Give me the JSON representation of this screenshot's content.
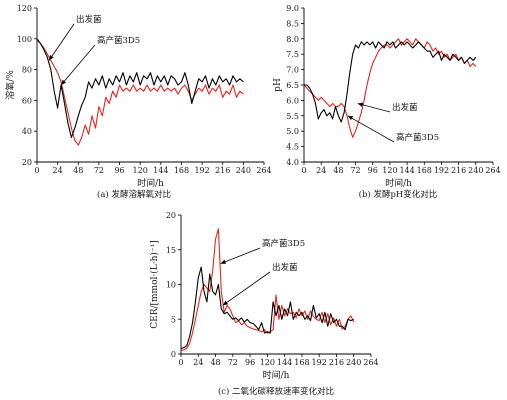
{
  "chart_data": [
    {
      "type": "line",
      "caption": "(a) 发酵溶解氧对比",
      "xlabel": "时间/h",
      "ylabel": "溶氧/%",
      "xlim": [
        0,
        264
      ],
      "ylim": [
        20,
        120
      ],
      "xticks": [
        "0",
        "24",
        "48",
        "72",
        "96",
        "120",
        "144",
        "168",
        "192",
        "216",
        "240",
        "264"
      ],
      "yticks": [
        "20",
        "40",
        "60",
        "80",
        "100",
        "120"
      ],
      "annotations": [
        {
          "text": "出发菌",
          "target": "starting"
        },
        {
          "text": "高产菌3D5",
          "target": "high"
        }
      ],
      "series": [
        {
          "name": "出发菌",
          "color": "#000000",
          "x": [
            0,
            4,
            8,
            12,
            16,
            20,
            24,
            28,
            32,
            36,
            40,
            44,
            48,
            52,
            56,
            60,
            64,
            68,
            72,
            76,
            80,
            84,
            88,
            92,
            96,
            100,
            104,
            108,
            112,
            116,
            120,
            124,
            128,
            132,
            136,
            140,
            144,
            148,
            152,
            156,
            160,
            164,
            168,
            172,
            176,
            180,
            184,
            188,
            192,
            196,
            200,
            204,
            208,
            212,
            216,
            220,
            224,
            228,
            232,
            236,
            240
          ],
          "y": [
            100,
            97,
            93,
            88,
            80,
            66,
            55,
            70,
            58,
            45,
            36,
            42,
            50,
            57,
            62,
            72,
            68,
            74,
            70,
            76,
            68,
            74,
            70,
            76,
            72,
            78,
            70,
            76,
            72,
            78,
            70,
            76,
            74,
            78,
            70,
            76,
            72,
            76,
            70,
            76,
            74,
            70,
            72,
            78,
            70,
            58,
            66,
            74,
            72,
            76,
            68,
            74,
            70,
            76,
            72,
            74,
            70,
            76,
            72,
            74,
            72
          ]
        },
        {
          "name": "高产菌3D5",
          "color": "#e8261f",
          "x": [
            0,
            4,
            8,
            12,
            16,
            20,
            24,
            28,
            32,
            36,
            40,
            44,
            48,
            52,
            56,
            60,
            64,
            68,
            72,
            76,
            80,
            84,
            88,
            92,
            96,
            100,
            104,
            108,
            112,
            116,
            120,
            124,
            128,
            132,
            136,
            140,
            144,
            148,
            152,
            156,
            160,
            164,
            168,
            172,
            176,
            180,
            184,
            188,
            192,
            196,
            200,
            204,
            208,
            212,
            216,
            220,
            224,
            228,
            232,
            236,
            240
          ],
          "y": [
            99,
            97,
            94,
            90,
            86,
            82,
            78,
            72,
            62,
            52,
            42,
            34,
            31,
            36,
            44,
            38,
            50,
            42,
            56,
            50,
            62,
            58,
            66,
            62,
            70,
            66,
            68,
            66,
            70,
            66,
            68,
            66,
            70,
            66,
            68,
            66,
            70,
            66,
            68,
            66,
            68,
            64,
            68,
            70,
            66,
            60,
            64,
            68,
            66,
            70,
            64,
            68,
            66,
            70,
            62,
            66,
            64,
            70,
            62,
            66,
            64
          ]
        }
      ]
    },
    {
      "type": "line",
      "caption": "(b) 发酵pH变化对比",
      "xlabel": "时间/h",
      "ylabel": "pH",
      "xlim": [
        0,
        264
      ],
      "ylim": [
        4.0,
        9.0
      ],
      "xticks": [
        "0",
        "24",
        "48",
        "72",
        "96",
        "120",
        "144",
        "168",
        "192",
        "216",
        "240",
        "264"
      ],
      "yticks": [
        "4.0",
        "4.5",
        "5.0",
        "5.5",
        "6.0",
        "6.5",
        "7.0",
        "7.5",
        "8.0",
        "8.5",
        "9.0"
      ],
      "annotations": [
        {
          "text": "出发菌",
          "target": "starting"
        },
        {
          "text": "高产菌3D5",
          "target": "high"
        }
      ],
      "series": [
        {
          "name": "出发菌",
          "color": "#000000",
          "x": [
            0,
            4,
            8,
            12,
            16,
            20,
            24,
            28,
            32,
            36,
            40,
            44,
            48,
            52,
            56,
            60,
            64,
            68,
            72,
            76,
            80,
            84,
            88,
            92,
            96,
            100,
            104,
            108,
            112,
            116,
            120,
            124,
            128,
            132,
            136,
            140,
            144,
            148,
            152,
            156,
            160,
            164,
            168,
            172,
            176,
            180,
            184,
            188,
            192,
            196,
            200,
            204,
            208,
            212,
            216,
            220,
            224,
            228,
            232,
            236,
            240
          ],
          "y": [
            6.5,
            6.5,
            6.4,
            6.2,
            5.9,
            5.4,
            5.6,
            5.7,
            5.5,
            5.6,
            5.4,
            5.8,
            5.5,
            5.3,
            5.6,
            6.2,
            6.9,
            7.5,
            7.8,
            7.7,
            7.9,
            7.8,
            7.9,
            7.8,
            7.9,
            7.7,
            7.9,
            7.8,
            7.7,
            7.9,
            7.8,
            7.9,
            7.7,
            7.8,
            7.9,
            7.8,
            7.9,
            7.8,
            7.7,
            7.8,
            7.9,
            7.8,
            7.7,
            7.6,
            7.6,
            7.4,
            7.5,
            7.6,
            7.3,
            7.5,
            7.4,
            7.3,
            7.5,
            7.4,
            7.3,
            7.4,
            7.2,
            7.3,
            7.4,
            7.3,
            7.4
          ]
        },
        {
          "name": "高产菌3D5",
          "color": "#e8261f",
          "x": [
            0,
            4,
            8,
            12,
            16,
            20,
            24,
            28,
            32,
            36,
            40,
            44,
            48,
            52,
            56,
            60,
            64,
            68,
            72,
            76,
            80,
            84,
            88,
            92,
            96,
            100,
            104,
            108,
            112,
            116,
            120,
            124,
            128,
            132,
            136,
            140,
            144,
            148,
            152,
            156,
            160,
            164,
            168,
            172,
            176,
            180,
            184,
            188,
            192,
            196,
            200,
            204,
            208,
            212,
            216,
            220,
            224,
            228,
            232,
            236,
            240
          ],
          "y": [
            6.5,
            6.4,
            6.3,
            6.2,
            6.1,
            6.0,
            6.1,
            6.0,
            5.9,
            5.8,
            5.9,
            5.8,
            5.8,
            5.9,
            5.8,
            5.5,
            5.1,
            4.8,
            5.0,
            5.3,
            5.6,
            6.0,
            6.5,
            6.9,
            7.2,
            7.4,
            7.6,
            7.7,
            7.8,
            7.8,
            7.7,
            7.8,
            7.9,
            8.0,
            7.8,
            7.9,
            8.0,
            7.9,
            7.8,
            8.0,
            7.9,
            7.8,
            7.7,
            7.9,
            7.8,
            7.6,
            7.7,
            7.5,
            7.6,
            7.4,
            7.5,
            7.3,
            7.4,
            7.5,
            7.3,
            7.4,
            7.2,
            7.3,
            7.1,
            7.2,
            7.1
          ]
        }
      ]
    },
    {
      "type": "line",
      "caption": "(c) 二氧化碳释放速率变化对比",
      "xlabel": "时间/h",
      "ylabel": "CER/[mmol·(L·h)⁻¹]",
      "xlim": [
        0,
        264
      ],
      "ylim": [
        0,
        20
      ],
      "xticks": [
        "0",
        "24",
        "48",
        "72",
        "96",
        "120",
        "144",
        "168",
        "192",
        "216",
        "240",
        "264"
      ],
      "yticks": [
        "0",
        "5",
        "10",
        "15",
        "20"
      ],
      "annotations": [
        {
          "text": "高产菌3D5",
          "target": "high"
        },
        {
          "text": "出发菌",
          "target": "starting"
        }
      ],
      "series": [
        {
          "name": "出发菌",
          "color": "#000000",
          "x": [
            0,
            4,
            8,
            12,
            16,
            20,
            24,
            28,
            32,
            36,
            40,
            44,
            48,
            52,
            56,
            60,
            64,
            68,
            72,
            76,
            80,
            84,
            88,
            92,
            96,
            100,
            104,
            108,
            112,
            116,
            120,
            124,
            128,
            132,
            136,
            140,
            144,
            148,
            152,
            156,
            160,
            164,
            168,
            172,
            176,
            180,
            184,
            188,
            192,
            196,
            200,
            204,
            208,
            212,
            216,
            220,
            224,
            228,
            232,
            236,
            240
          ],
          "y": [
            0.8,
            0.9,
            1.2,
            2.5,
            4.5,
            7.5,
            11,
            12.5,
            9,
            7.5,
            11.5,
            9,
            8.5,
            10,
            6.5,
            5.8,
            6,
            5.5,
            5,
            5.2,
            4.8,
            5.2,
            4.6,
            5,
            4.5,
            4.4,
            4,
            3.5,
            4.5,
            3,
            3.2,
            3,
            7.5,
            5.5,
            7,
            5,
            6.5,
            5.5,
            7.5,
            5,
            6,
            5.5,
            6,
            5,
            5.5,
            4.8,
            7,
            5.2,
            5.8,
            4.5,
            6,
            4,
            5.8,
            4.5,
            5,
            4,
            4,
            3.5,
            5,
            4.8,
            5
          ]
        },
        {
          "name": "高产菌3D5",
          "color": "#e8261f",
          "x": [
            0,
            4,
            8,
            12,
            16,
            20,
            24,
            28,
            32,
            36,
            40,
            44,
            48,
            52,
            56,
            60,
            64,
            68,
            72,
            76,
            80,
            84,
            88,
            92,
            96,
            100,
            104,
            108,
            112,
            116,
            120,
            124,
            128,
            132,
            136,
            140,
            144,
            148,
            152,
            156,
            160,
            164,
            168,
            172,
            176,
            180,
            184,
            188,
            192,
            196,
            200,
            204,
            208,
            212,
            216,
            220,
            224,
            228,
            232,
            236,
            240
          ],
          "y": [
            0.5,
            0.6,
            0.8,
            1.5,
            3,
            5,
            7,
            9,
            10,
            9.5,
            9,
            12,
            16.5,
            18,
            9,
            6,
            7,
            6.5,
            5.5,
            4.5,
            4.8,
            4.2,
            4.5,
            4,
            3.8,
            3.6,
            3.5,
            3.4,
            3.2,
            3.5,
            3,
            3.2,
            3.5,
            8.5,
            5,
            7,
            5.5,
            6.5,
            5.8,
            6,
            5.2,
            6.5,
            5.5,
            6.2,
            5,
            6.2,
            5.4,
            5,
            4.8,
            6,
            4.5,
            5.8,
            4.2,
            5.2,
            4,
            5,
            3.6,
            4,
            5,
            5.5,
            4.6
          ]
        }
      ]
    }
  ]
}
